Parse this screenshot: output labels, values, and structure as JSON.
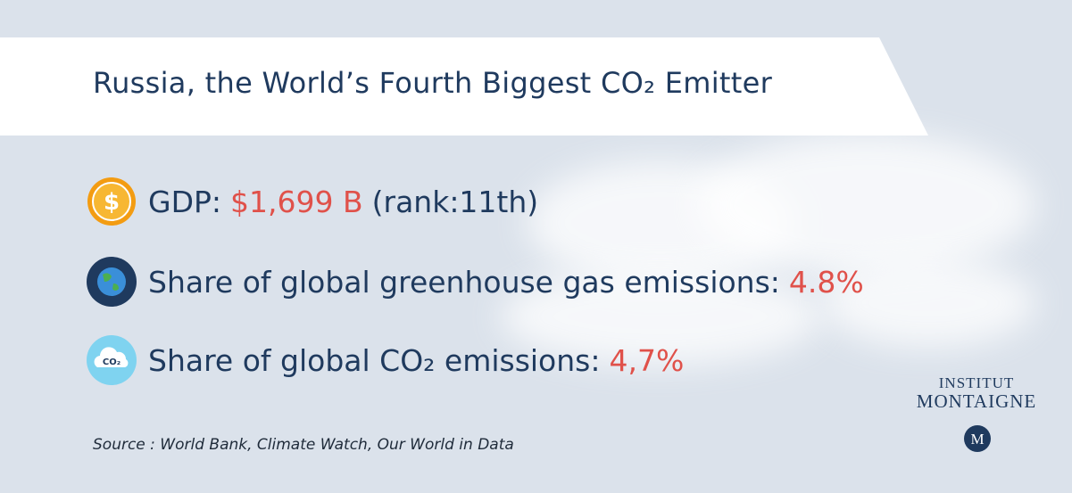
{
  "header": {
    "title": "Russia, the World’s Fourth Biggest CO₂ Emitter"
  },
  "items": [
    {
      "icon": "$",
      "label": "GDP:",
      "value": "$1,699 B",
      "note": "(rank:11th)"
    },
    {
      "label": "Share of global greenhouse gas emissions:",
      "value": "4.8%"
    },
    {
      "icon": "CO₂",
      "label": "Share of global CO₂ emissions:",
      "value": "4,7%"
    }
  ],
  "source": "Source : World Bank, Climate Watch, Our World in Data",
  "logo": {
    "line1": "INSTITUT",
    "line2": "MONTAIGNE",
    "mark": "M"
  }
}
